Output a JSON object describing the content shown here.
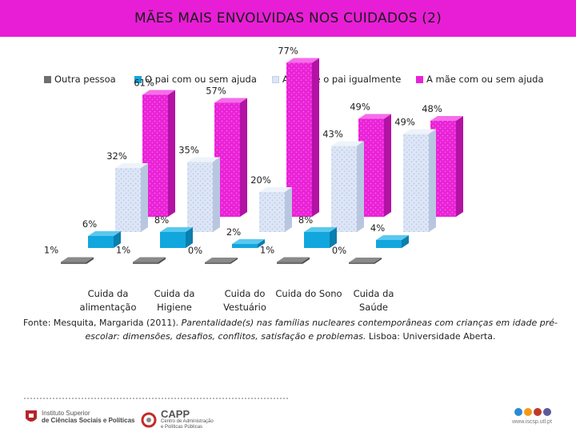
{
  "title": "MÃES MAIS ENVOLVIDAS NOS CUIDADOS (2)",
  "chart_data": {
    "type": "bar",
    "subtype": "3d-clustered-column",
    "title": "MÃES MAIS ENVOLVIDAS NOS CUIDADOS (2)",
    "categories": [
      [
        "Cuida da",
        "alimentação"
      ],
      [
        "Cuida da",
        "Higiene"
      ],
      [
        "Cuida do",
        "Vestuário"
      ],
      [
        "Cuida do Sono"
      ],
      [
        "Cuida da",
        "Saúde"
      ]
    ],
    "series": [
      {
        "name": "Outra pessoa",
        "values": [
          1,
          1,
          0,
          1,
          0
        ],
        "labels": [
          "1%",
          "1%",
          "0%",
          "1%",
          "0%"
        ],
        "color": "#6f6f6f"
      },
      {
        "name": "O pai com ou sem ajuda",
        "values": [
          6,
          8,
          2,
          8,
          4
        ],
        "labels": [
          "6%",
          "8%",
          "2%",
          "8%",
          "4%"
        ],
        "color": "#12a6de"
      },
      {
        "name": "A mãe e o pai igualmente",
        "values": [
          32,
          35,
          20,
          43,
          49
        ],
        "labels": [
          "32%",
          "35%",
          "20%",
          "43%",
          "49%"
        ],
        "color": "#dde6f6"
      },
      {
        "name": "A mãe com ou sem ajuda",
        "values": [
          61,
          57,
          77,
          49,
          48
        ],
        "labels": [
          "61%",
          "57%",
          "77%",
          "49%",
          "48%"
        ],
        "color": "#ea22d7"
      }
    ],
    "legend_position": "top",
    "ylim": [
      0,
      80
    ],
    "grid": false,
    "xlabel": "",
    "ylabel": ""
  },
  "source": {
    "prefix": "Fonte: Mesquita, Margarida  (2011). ",
    "italic": "Parentalidade(s) nas famílias nucleares contemporâneas com crianças em idade pré-escolar: dimensões, desafios, conflitos, satisfação e problemas.",
    "suffix": " Lisboa: Universidade Aberta."
  },
  "footer": {
    "iscsp_line1": "Instituto Superior",
    "iscsp_line2": "de Ciências Sociais e Políticas",
    "capp_name": "CAPP",
    "capp_line1": "Centro de Administração",
    "capp_line2": "e Políticas Públicas",
    "url": "www.iscsp.utl.pt"
  }
}
